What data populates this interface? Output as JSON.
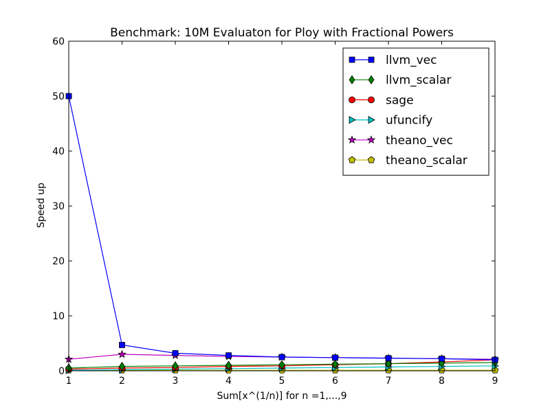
{
  "chart_data": {
    "type": "line",
    "title": "Benchmark: 10M Evaluaton for Ploy with Fractional Powers",
    "xlabel": "Sum[x^(1/n)] for n =1,...,9",
    "ylabel": "Speed up",
    "xlim": [
      1,
      9
    ],
    "ylim": [
      0,
      60
    ],
    "xticks": [
      "1",
      "2",
      "3",
      "4",
      "5",
      "6",
      "7",
      "8",
      "9"
    ],
    "yticks": [
      "0",
      "10",
      "20",
      "30",
      "40",
      "50",
      "60"
    ],
    "grid": false,
    "legend_position": "top-right",
    "x": [
      1,
      2,
      3,
      4,
      5,
      6,
      7,
      8,
      9
    ],
    "series": [
      {
        "name": "llvm_vec",
        "color": "#0000ff",
        "marker": "square",
        "values": [
          50.0,
          4.7,
          3.2,
          2.8,
          2.5,
          2.4,
          2.3,
          2.2,
          2.0
        ]
      },
      {
        "name": "llvm_scalar",
        "color": "#008000",
        "marker": "diamond",
        "values": [
          0.5,
          0.8,
          0.9,
          1.0,
          1.1,
          1.2,
          1.3,
          1.4,
          1.5
        ]
      },
      {
        "name": "sage",
        "color": "#ff0000",
        "marker": "circle",
        "values": [
          0.3,
          0.5,
          0.6,
          0.8,
          0.9,
          1.1,
          1.3,
          1.6,
          2.0
        ]
      },
      {
        "name": "ufuncify",
        "color": "#00bfbf",
        "marker": "triangle-right",
        "values": [
          0.1,
          0.2,
          0.3,
          0.4,
          0.5,
          0.6,
          0.7,
          0.8,
          0.9
        ]
      },
      {
        "name": "theano_vec",
        "color": "#bf00bf",
        "marker": "star",
        "values": [
          2.1,
          3.0,
          2.8,
          2.6,
          2.5,
          2.4,
          2.3,
          2.2,
          2.1
        ]
      },
      {
        "name": "theano_scalar",
        "color": "#bfbf00",
        "marker": "pentagon",
        "values": [
          0.1,
          0.1,
          0.1,
          0.1,
          0.1,
          0.1,
          0.1,
          0.1,
          0.1
        ]
      }
    ]
  }
}
